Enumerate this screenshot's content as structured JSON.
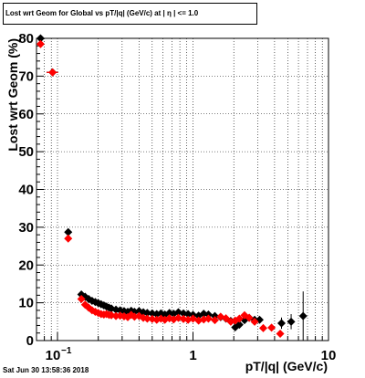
{
  "chart_data": {
    "type": "scatter",
    "title": "Lost wrt Geom for Global vs pT/|q| (GeV/c) at | η | <= 1.0",
    "xlabel": "pT/|q| (GeV/c)",
    "ylabel": "Lost wrt Geom (%)",
    "xscale": "log",
    "xlim": [
      0.07,
      10
    ],
    "ylim": [
      0,
      80
    ],
    "grid": true,
    "yticks": [
      0,
      10,
      20,
      30,
      40,
      50,
      60,
      70,
      80
    ],
    "xticks": [
      {
        "value": 0.1,
        "label": "10",
        "exp": "−1"
      },
      {
        "value": 1,
        "label": "1",
        "exp": ""
      },
      {
        "value": 10,
        "label": "10",
        "exp": ""
      }
    ],
    "series": [
      {
        "color": "#000000",
        "marker": "diamond",
        "points": [
          {
            "x": 0.075,
            "y": 80.0,
            "xerr": 0.003
          },
          {
            "x": 0.092,
            "y": 71.0,
            "xerr": 0.009
          },
          {
            "x": 0.12,
            "y": 28.7,
            "xerr": 0.005
          },
          {
            "x": 0.15,
            "y": 12.2
          },
          {
            "x": 0.16,
            "y": 11.6
          },
          {
            "x": 0.17,
            "y": 11.0
          },
          {
            "x": 0.18,
            "y": 10.5
          },
          {
            "x": 0.19,
            "y": 10.2
          },
          {
            "x": 0.2,
            "y": 9.9
          },
          {
            "x": 0.21,
            "y": 9.6
          },
          {
            "x": 0.22,
            "y": 9.3
          },
          {
            "x": 0.23,
            "y": 9.0
          },
          {
            "x": 0.24,
            "y": 8.7
          },
          {
            "x": 0.25,
            "y": 8.5
          },
          {
            "x": 0.27,
            "y": 8.2
          },
          {
            "x": 0.29,
            "y": 8.0
          },
          {
            "x": 0.31,
            "y": 7.8
          },
          {
            "x": 0.33,
            "y": 7.6
          },
          {
            "x": 0.35,
            "y": 7.9
          },
          {
            "x": 0.37,
            "y": 7.6
          },
          {
            "x": 0.4,
            "y": 7.8
          },
          {
            "x": 0.43,
            "y": 7.5
          },
          {
            "x": 0.46,
            "y": 7.3
          },
          {
            "x": 0.5,
            "y": 7.2
          },
          {
            "x": 0.54,
            "y": 7.0
          },
          {
            "x": 0.58,
            "y": 7.2
          },
          {
            "x": 0.62,
            "y": 6.9
          },
          {
            "x": 0.67,
            "y": 7.3
          },
          {
            "x": 0.72,
            "y": 7.1
          },
          {
            "x": 0.78,
            "y": 7.5
          },
          {
            "x": 0.85,
            "y": 7.2
          },
          {
            "x": 0.92,
            "y": 7.0
          },
          {
            "x": 1.0,
            "y": 6.8
          },
          {
            "x": 1.1,
            "y": 6.6
          },
          {
            "x": 1.2,
            "y": 7.1
          },
          {
            "x": 1.3,
            "y": 6.9
          },
          {
            "x": 1.45,
            "y": 6.5
          },
          {
            "x": 1.6,
            "y": 6.2
          },
          {
            "x": 1.75,
            "y": 5.8
          },
          {
            "x": 1.9,
            "y": 5.2
          },
          {
            "x": 2.05,
            "y": 3.5
          },
          {
            "x": 2.2,
            "y": 4.2
          },
          {
            "x": 2.4,
            "y": 5.4
          },
          {
            "x": 2.6,
            "y": 6.0
          },
          {
            "x": 2.85,
            "y": 5.5
          },
          {
            "x": 3.1,
            "y": 5.5
          },
          {
            "x": 4.5,
            "y": 4.6,
            "yerr": 1.5
          },
          {
            "x": 5.3,
            "y": 5.0,
            "yerr": 2.0
          },
          {
            "x": 6.5,
            "y": 6.5,
            "yerr": 6.5
          }
        ]
      },
      {
        "color": "#ff0000",
        "marker": "diamond",
        "points": [
          {
            "x": 0.075,
            "y": 78.5,
            "xerr": 0.003
          },
          {
            "x": 0.092,
            "y": 71.0,
            "xerr": 0.009
          },
          {
            "x": 0.12,
            "y": 27.0,
            "xerr": 0.005
          },
          {
            "x": 0.15,
            "y": 11.0
          },
          {
            "x": 0.16,
            "y": 9.5
          },
          {
            "x": 0.17,
            "y": 8.7
          },
          {
            "x": 0.18,
            "y": 8.0
          },
          {
            "x": 0.19,
            "y": 7.6
          },
          {
            "x": 0.2,
            "y": 7.3
          },
          {
            "x": 0.21,
            "y": 7.0
          },
          {
            "x": 0.22,
            "y": 6.9
          },
          {
            "x": 0.23,
            "y": 7.0
          },
          {
            "x": 0.24,
            "y": 6.8
          },
          {
            "x": 0.25,
            "y": 6.7
          },
          {
            "x": 0.27,
            "y": 6.5
          },
          {
            "x": 0.29,
            "y": 6.6
          },
          {
            "x": 0.31,
            "y": 6.4
          },
          {
            "x": 0.33,
            "y": 6.2
          },
          {
            "x": 0.35,
            "y": 6.8
          },
          {
            "x": 0.37,
            "y": 6.3
          },
          {
            "x": 0.4,
            "y": 6.5
          },
          {
            "x": 0.43,
            "y": 6.0
          },
          {
            "x": 0.46,
            "y": 5.8
          },
          {
            "x": 0.5,
            "y": 5.7
          },
          {
            "x": 0.54,
            "y": 5.5
          },
          {
            "x": 0.58,
            "y": 5.8
          },
          {
            "x": 0.62,
            "y": 5.5
          },
          {
            "x": 0.67,
            "y": 5.9
          },
          {
            "x": 0.72,
            "y": 5.6
          },
          {
            "x": 0.78,
            "y": 6.0
          },
          {
            "x": 0.85,
            "y": 5.7
          },
          {
            "x": 0.92,
            "y": 5.5
          },
          {
            "x": 1.0,
            "y": 5.8
          },
          {
            "x": 1.1,
            "y": 5.3
          },
          {
            "x": 1.2,
            "y": 5.6
          },
          {
            "x": 1.3,
            "y": 5.8
          },
          {
            "x": 1.45,
            "y": 5.4
          },
          {
            "x": 1.6,
            "y": 6.3
          },
          {
            "x": 1.75,
            "y": 5.9
          },
          {
            "x": 1.9,
            "y": 5.0
          },
          {
            "x": 2.05,
            "y": 5.3
          },
          {
            "x": 2.2,
            "y": 5.8
          },
          {
            "x": 2.4,
            "y": 6.7
          },
          {
            "x": 2.6,
            "y": 6.0
          },
          {
            "x": 2.85,
            "y": 5.0
          },
          {
            "x": 3.3,
            "y": 3.3
          },
          {
            "x": 3.8,
            "y": 3.4
          },
          {
            "x": 4.4,
            "y": 1.8
          }
        ]
      }
    ]
  },
  "footer": {
    "timestamp": "Sat Jun 30 13:58:36 2018"
  }
}
